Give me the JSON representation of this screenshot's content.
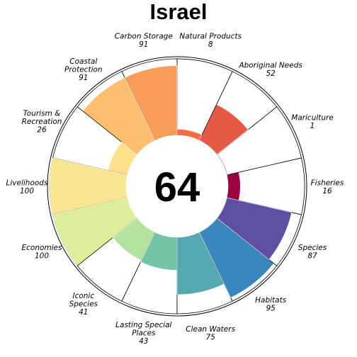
{
  "chart_data": {
    "type": "flower",
    "title": "Israel",
    "center_score": "64",
    "max_value": 100,
    "petals": [
      {
        "label": [
          "Fisheries"
        ],
        "value_text": "16",
        "value": 16,
        "color": "#9e0142"
      },
      {
        "label": [
          "Mariculture"
        ],
        "value_text": "1",
        "value": 1,
        "color": "#d53e4f"
      },
      {
        "label": [
          "Aboriginal Needs"
        ],
        "value_text": "52",
        "value": 52,
        "color": "#e65945"
      },
      {
        "label": [
          "Natural Products"
        ],
        "value_text": "8",
        "value": 8,
        "color": "#f46d43"
      },
      {
        "label": [
          "Carbon Storage"
        ],
        "value_text": "91",
        "value": 91,
        "color": "#f89c59"
      },
      {
        "label": [
          "Coastal",
          "Protection"
        ],
        "value_text": "91",
        "value": 91,
        "color": "#fdbf6f"
      },
      {
        "label": [
          "Tourism &",
          "Recreation"
        ],
        "value_text": "26",
        "value": 26,
        "color": "#fee08b"
      },
      {
        "label": [
          "Livelihoods"
        ],
        "value_text": "100",
        "value": 100,
        "color": "#f7e58f"
      },
      {
        "label": [
          "Economies"
        ],
        "value_text": "100",
        "value": 100,
        "color": "#dcee99"
      },
      {
        "label": [
          "Iconic",
          "Species"
        ],
        "value_text": "41",
        "value": 41,
        "color": "#b6e2a0"
      },
      {
        "label": [
          "Lasting Special",
          "Places"
        ],
        "value_text": "43",
        "value": 43,
        "color": "#74c5a5"
      },
      {
        "label": [
          "Clean Waters"
        ],
        "value_text": "75",
        "value": 75,
        "color": "#56a8b0"
      },
      {
        "label": [
          "Habitats"
        ],
        "value_text": "95",
        "value": 95,
        "color": "#3a87bd"
      },
      {
        "label": [
          "Species"
        ],
        "value_text": "87",
        "value": 87,
        "color": "#5e4fa2"
      }
    ]
  }
}
